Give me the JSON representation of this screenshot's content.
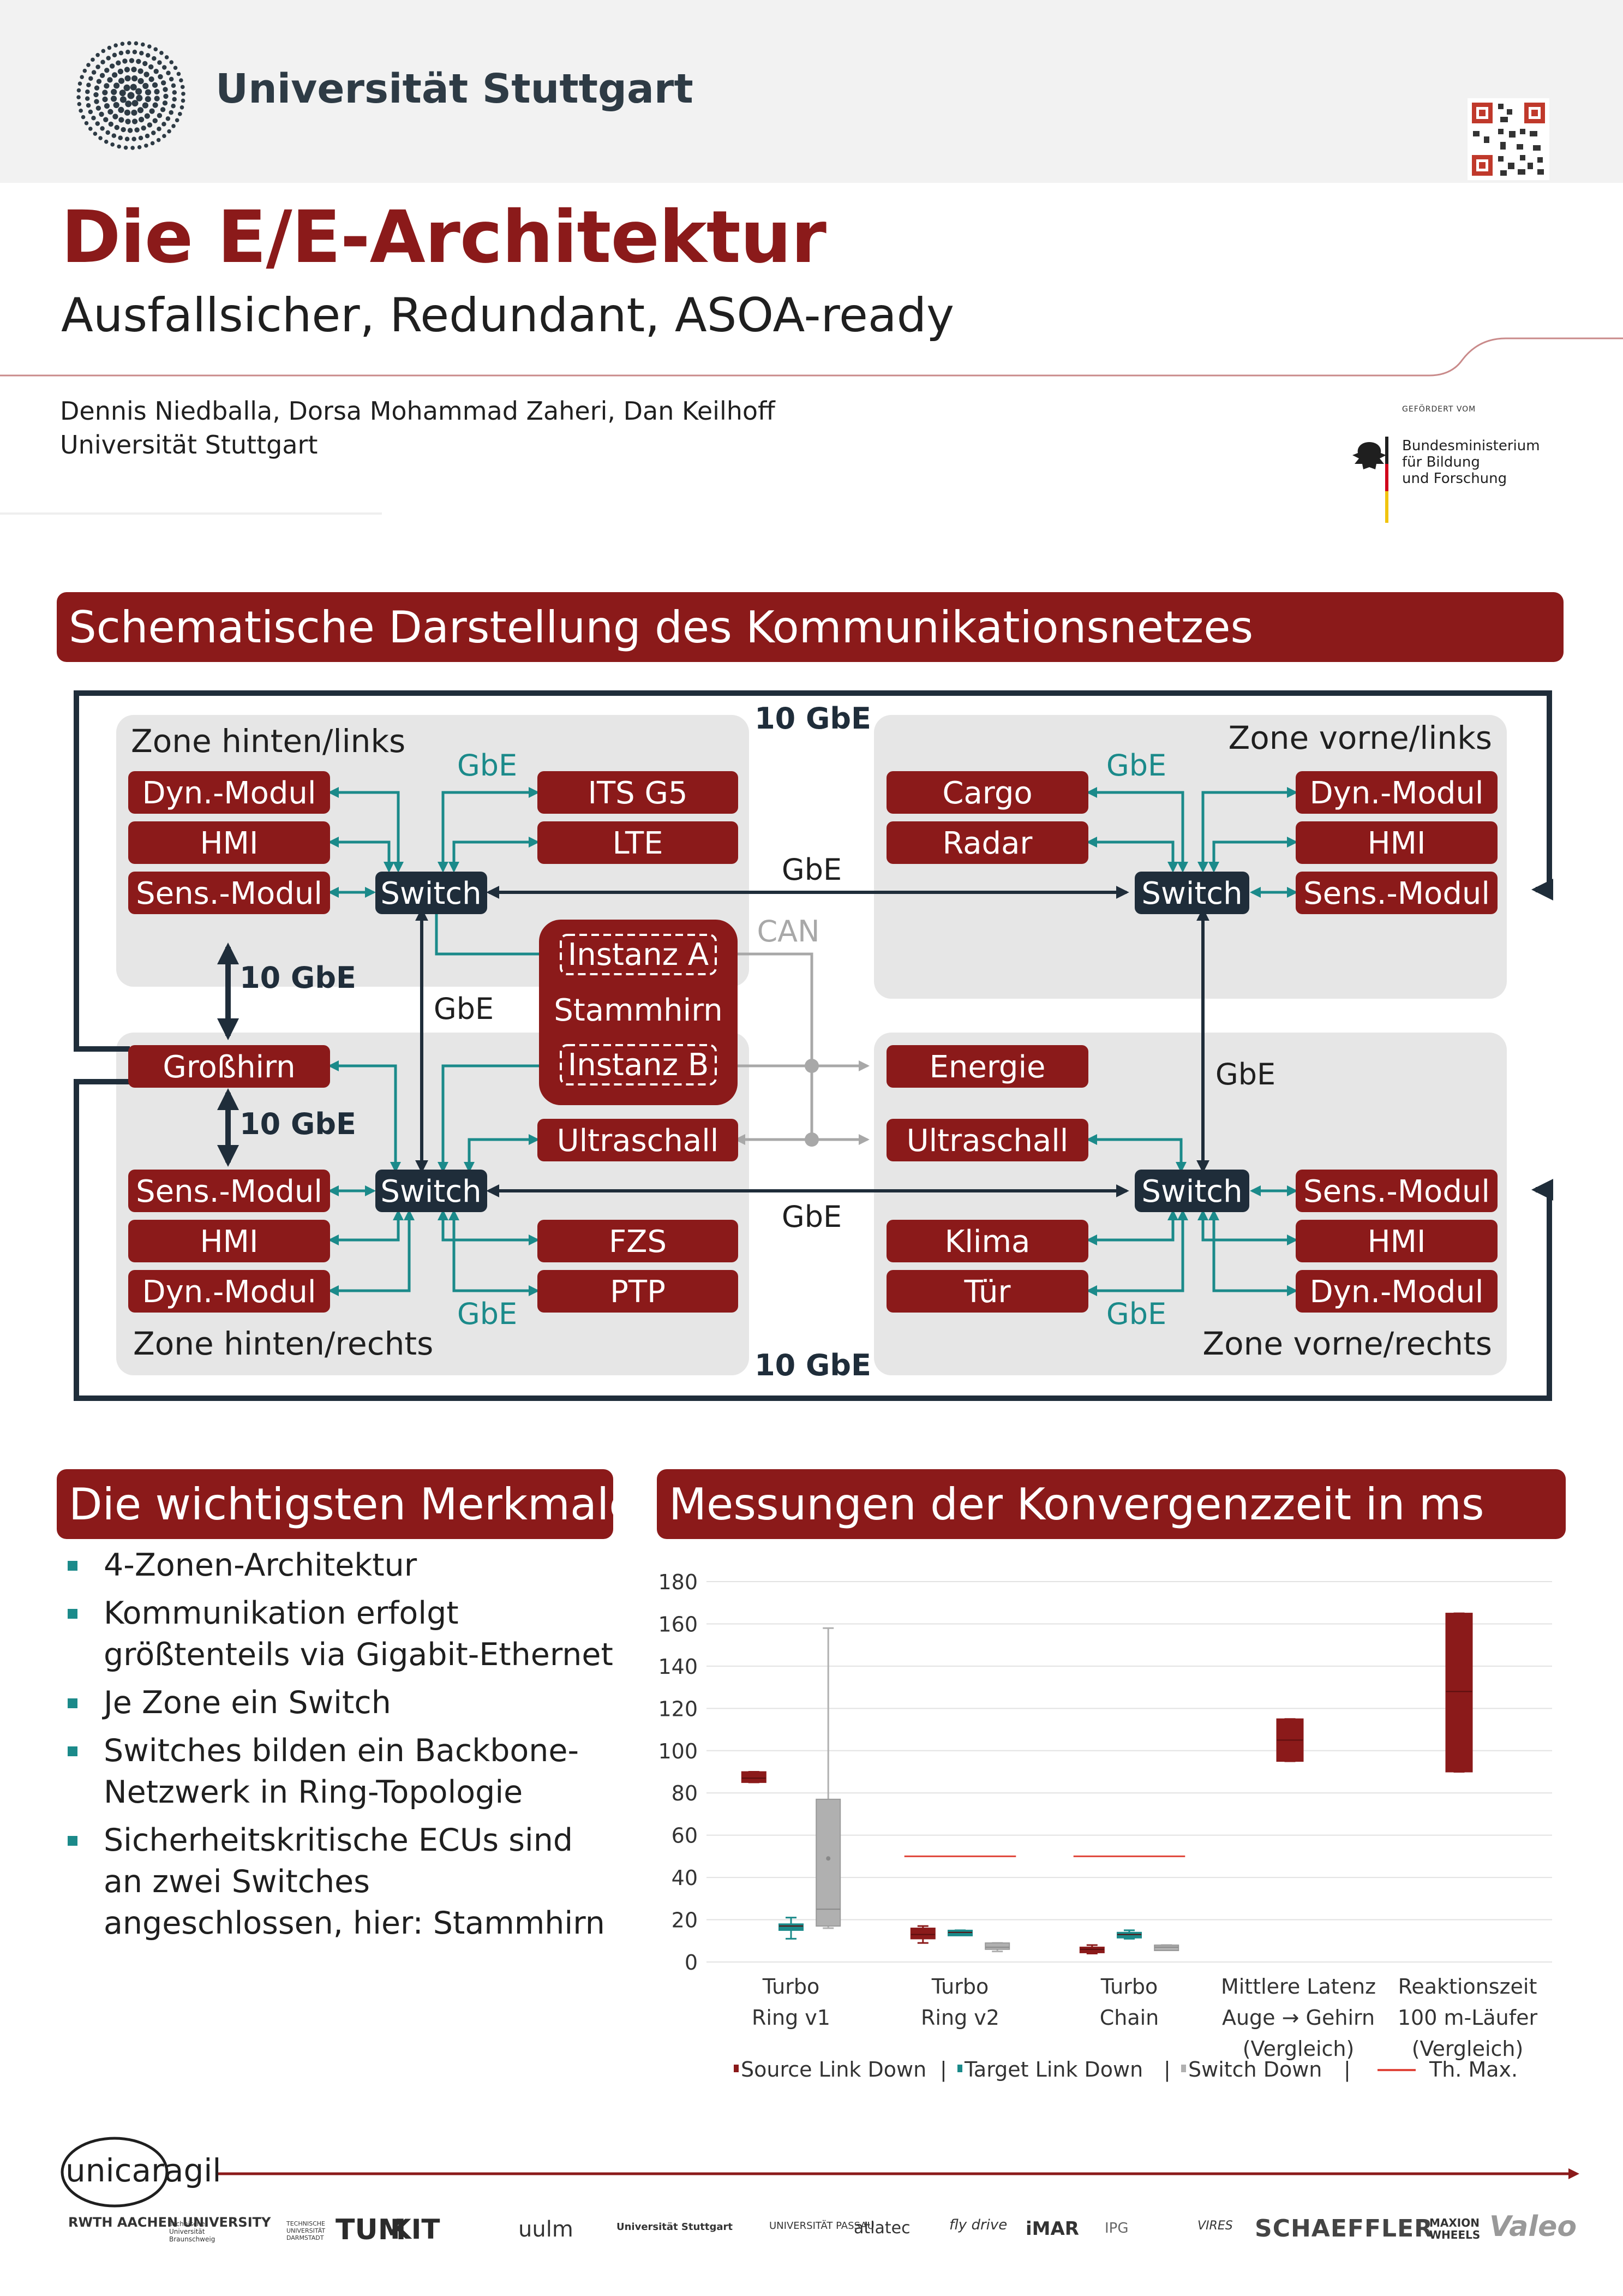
{
  "header": {
    "university": "Universität Stuttgart",
    "title": "Die E/E-Architektur",
    "subtitle": "Ausfallsicher, Redundant, ASOA-ready",
    "authors": [
      "Dennis Niedballa, Dorsa Mohammad Zaheri, Dan Keilhoff",
      "Universität Stuttgart"
    ],
    "funder_small": "GEFÖRDERT VOM",
    "funder": [
      "Bundesministerium",
      "für Bildung",
      "und Forschung"
    ]
  },
  "network": {
    "heading": "Schematische Darstellung des Kommunikationsnetzes",
    "zones": [
      "Zone hinten/links",
      "Zone vorne/links",
      "Zone hinten/rechts",
      "Zone vorne/rechts"
    ],
    "switch_label": "Switch",
    "modules": {
      "hl": [
        "Dyn.-Modul",
        "HMI",
        "Sens.-Modul"
      ],
      "hl_right": [
        "ITS G5",
        "LTE"
      ],
      "vl_left": [
        "Cargo",
        "Radar"
      ],
      "vl": [
        "Dyn.-Modul",
        "HMI",
        "Sens.-Modul"
      ],
      "grosshirn": "Großhirn",
      "stammhirn": "Stammhirn",
      "instanz_a": "Instanz A",
      "instanz_b": "Instanz B",
      "energie": "Energie",
      "ultraschall": "Ultraschall",
      "hr": [
        "Sens.-Modul",
        "HMI",
        "Dyn.-Modul"
      ],
      "hr_right": [
        "FZS",
        "PTP"
      ],
      "vr_left": [
        "Klima",
        "Tür"
      ],
      "vr": [
        "Sens.-Modul",
        "HMI",
        "Dyn.-Modul"
      ]
    },
    "links": {
      "gbe": "GbE",
      "ten_gbe": "10 GbE",
      "can": "CAN"
    }
  },
  "features": {
    "heading": "Die wichtigsten Merkmale",
    "items": [
      "4-Zonen-Architektur",
      "Kommunikation erfolgt größtenteils via Gigabit-Ethernet",
      "Je Zone ein Switch",
      "Switches bilden ein Backbone-Netzwerk in Ring-Topologie",
      "Sicherheitskritische ECUs sind an zwei Switches angeschlossen, hier: Stammhirn"
    ]
  },
  "measurements": {
    "heading": "Messungen der Konvergenzzeit in ms"
  },
  "chart_data": {
    "type": "box",
    "ylim": [
      0,
      180
    ],
    "yticks": [
      0,
      20,
      40,
      60,
      80,
      100,
      120,
      140,
      160,
      180
    ],
    "categories": [
      [
        "Turbo",
        "Ring v1"
      ],
      [
        "Turbo",
        "Ring v2"
      ],
      [
        "Turbo",
        "Chain"
      ],
      [
        "Mittlere Latenz",
        "Auge → Gehirn",
        "(Vergleich)"
      ],
      [
        "Reaktionszeit",
        "100 m-Läufer",
        "(Vergleich)"
      ]
    ],
    "legend": [
      "Source Link Down",
      "Target Link Down",
      "Switch Down",
      "Th. Max."
    ],
    "colors": {
      "source": "#8b1a1a",
      "target": "#1b8a8a",
      "switch": "#b0b0b0",
      "thmax": "#e0453a"
    },
    "series": [
      {
        "name": "Source Link Down",
        "boxes": [
          {
            "cat": 0,
            "min": 85,
            "q1": 85,
            "median": 87,
            "q3": 90,
            "max": 90
          },
          {
            "cat": 1,
            "min": 9,
            "q1": 11,
            "median": 13,
            "q3": 16,
            "max": 17
          },
          {
            "cat": 2,
            "min": 4,
            "q1": 5,
            "median": 6,
            "q3": 7,
            "max": 8
          },
          {
            "cat": 3,
            "min": 95,
            "q1": 95,
            "median": 105,
            "q3": 115,
            "max": 115
          },
          {
            "cat": 4,
            "min": 90,
            "q1": 90,
            "median": 128,
            "q3": 165,
            "max": 165
          }
        ]
      },
      {
        "name": "Target Link Down",
        "boxes": [
          {
            "cat": 0,
            "min": 11,
            "q1": 15,
            "median": 17,
            "q3": 18,
            "max": 21
          },
          {
            "cat": 1,
            "min": 13,
            "q1": 13,
            "median": 14,
            "q3": 15,
            "max": 15
          },
          {
            "cat": 2,
            "min": 11,
            "q1": 12,
            "median": 13,
            "q3": 14,
            "max": 15
          }
        ]
      },
      {
        "name": "Switch Down",
        "boxes": [
          {
            "cat": 0,
            "min": 16,
            "q1": 17,
            "median": 25,
            "q3": 77,
            "max": 158,
            "mean": 49
          },
          {
            "cat": 1,
            "min": 5,
            "q1": 6,
            "median": 7,
            "q3": 9,
            "max": 9
          },
          {
            "cat": 2,
            "min": 6,
            "q1": 6,
            "median": 7,
            "q3": 8,
            "max": 8
          }
        ]
      },
      {
        "name": "Th. Max.",
        "lines": [
          {
            "cat": 1,
            "value": 50
          },
          {
            "cat": 2,
            "value": 50
          }
        ]
      }
    ]
  },
  "footer": {
    "project": "unicaragil",
    "partners": [
      "RWTH AACHEN UNIVERSITY",
      "Technische Universität Braunschweig",
      "TECHNISCHE UNIVERSITÄT DARMSTADT",
      "TUM",
      "KIT",
      "uulm",
      "Universität Stuttgart",
      "UNIVERSITÄT PASSAU",
      "atlatec",
      "fly drive",
      "iMAR",
      "IPG",
      "VIRES",
      "SCHAEFFLER",
      "MAXION WHEELS",
      "Valeo"
    ]
  }
}
